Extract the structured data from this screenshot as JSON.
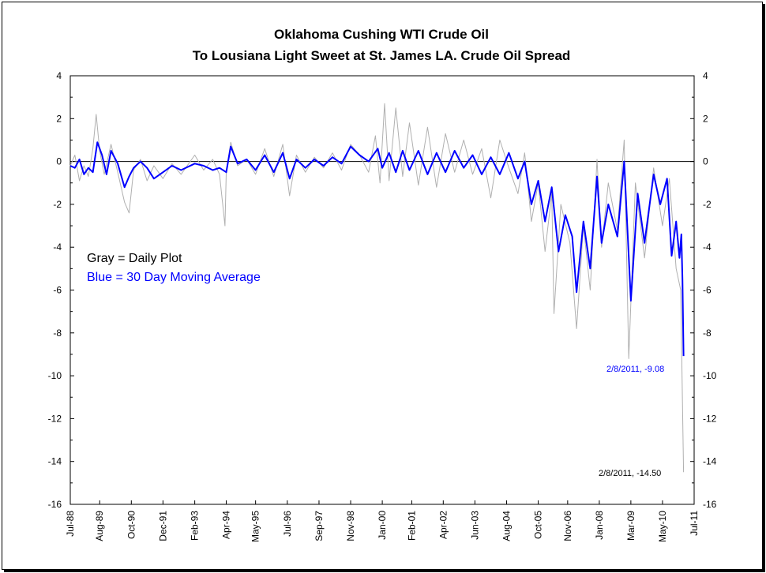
{
  "chart_data": {
    "type": "line",
    "title": "Oklahoma Cushing WTI Crude Oil",
    "subtitle": "To Lousiana Light Sweet at St. James LA. Crude Oil Spread",
    "ylim": [
      -16,
      4
    ],
    "xlim": [
      "1988-07-01",
      "2011-07-01"
    ],
    "y_ticks": [
      4,
      2,
      0,
      -2,
      -4,
      -6,
      -8,
      -10,
      -12,
      -14,
      -16
    ],
    "y_tick_labels": [
      "4",
      "2",
      "0",
      "-2",
      "-4",
      "-6",
      "-8",
      "-10",
      "-12",
      "-14",
      "-16"
    ],
    "x_tick_labels": [
      "Jul-88",
      "Aug-89",
      "Oct-90",
      "Dec-91",
      "Feb-93",
      "Apr-94",
      "May-95",
      "Jul-96",
      "Sep-97",
      "Nov-98",
      "Jan-00",
      "Feb-01",
      "Apr-02",
      "Jun-03",
      "Aug-04",
      "Oct-05",
      "Nov-06",
      "Jan-08",
      "Mar-09",
      "May-10",
      "Jul-11"
    ],
    "x_tick_dates": [
      "1988-07-01",
      "1989-08-01",
      "1990-10-01",
      "1991-12-01",
      "1993-02-01",
      "1994-04-01",
      "1995-05-01",
      "1996-07-01",
      "1997-09-01",
      "1998-11-01",
      "2000-01-01",
      "2001-02-01",
      "2002-04-01",
      "2003-06-01",
      "2004-08-01",
      "2005-10-01",
      "2006-11-01",
      "2008-01-01",
      "2009-03-01",
      "2010-05-01",
      "2011-07-01"
    ],
    "legend": [
      {
        "text": "Gray = Daily Plot",
        "color": "#000000"
      },
      {
        "text": "Blue = 30 Day Moving Average",
        "color": "#0000ff"
      }
    ],
    "legend_position": "left",
    "grid": false,
    "reference_line": 0,
    "annotations": [
      {
        "text": "2/8/2011, -9.08",
        "color": "#0000ff"
      },
      {
        "text": "2/8/2011, -14.50",
        "color": "#000000"
      }
    ],
    "series": [
      {
        "name": "Gray = Daily Plot",
        "color": "#b0b0b0",
        "points": [
          [
            "1988-07-01",
            -0.2
          ],
          [
            "1988-09-01",
            0.3
          ],
          [
            "1988-11-01",
            -0.9
          ],
          [
            "1989-01-01",
            -0.2
          ],
          [
            "1989-03-01",
            -0.7
          ],
          [
            "1989-05-01",
            0.6
          ],
          [
            "1989-06-15",
            2.2
          ],
          [
            "1989-08-01",
            0.5
          ],
          [
            "1989-10-01",
            -0.6
          ],
          [
            "1990-01-01",
            0.8
          ],
          [
            "1990-04-01",
            -0.5
          ],
          [
            "1990-07-01",
            -1.9
          ],
          [
            "1990-09-01",
            -2.4
          ],
          [
            "1990-11-01",
            -0.4
          ],
          [
            "1991-02-01",
            0.1
          ],
          [
            "1991-05-01",
            -0.9
          ],
          [
            "1991-08-01",
            -0.2
          ],
          [
            "1991-12-01",
            -0.8
          ],
          [
            "1992-04-01",
            -0.1
          ],
          [
            "1992-08-01",
            -0.6
          ],
          [
            "1993-02-01",
            0.3
          ],
          [
            "1993-06-01",
            -0.4
          ],
          [
            "1993-10-01",
            0.1
          ],
          [
            "1994-01-01",
            -0.6
          ],
          [
            "1994-03-15",
            -3.0
          ],
          [
            "1994-04-01",
            -0.5
          ],
          [
            "1994-06-01",
            0.9
          ],
          [
            "1994-09-01",
            -0.2
          ],
          [
            "1995-01-01",
            0.1
          ],
          [
            "1995-05-01",
            -0.6
          ],
          [
            "1995-09-01",
            0.6
          ],
          [
            "1996-01-01",
            -0.7
          ],
          [
            "1996-05-01",
            0.8
          ],
          [
            "1996-08-01",
            -1.6
          ],
          [
            "1996-11-01",
            0.3
          ],
          [
            "1997-03-01",
            -0.5
          ],
          [
            "1997-07-01",
            0.2
          ],
          [
            "1997-11-01",
            -0.3
          ],
          [
            "1998-03-01",
            0.4
          ],
          [
            "1998-07-01",
            -0.4
          ],
          [
            "1998-11-01",
            0.8
          ],
          [
            "1999-03-01",
            0.3
          ],
          [
            "1999-07-01",
            -0.5
          ],
          [
            "1999-10-01",
            1.2
          ],
          [
            "1999-12-01",
            -1.0
          ],
          [
            "2000-02-01",
            2.7
          ],
          [
            "2000-04-01",
            -0.9
          ],
          [
            "2000-07-01",
            2.5
          ],
          [
            "2000-10-01",
            -0.7
          ],
          [
            "2001-01-01",
            1.8
          ],
          [
            "2001-05-01",
            -1.1
          ],
          [
            "2001-09-01",
            1.6
          ],
          [
            "2002-01-01",
            -1.2
          ],
          [
            "2002-05-01",
            1.3
          ],
          [
            "2002-09-01",
            -0.5
          ],
          [
            "2003-01-01",
            1.0
          ],
          [
            "2003-05-01",
            -0.6
          ],
          [
            "2003-09-01",
            0.6
          ],
          [
            "2004-01-01",
            -1.7
          ],
          [
            "2004-05-01",
            1.0
          ],
          [
            "2004-09-01",
            -0.3
          ],
          [
            "2005-01-01",
            -1.5
          ],
          [
            "2005-04-01",
            0.4
          ],
          [
            "2005-07-01",
            -2.8
          ],
          [
            "2005-10-01",
            -1.0
          ],
          [
            "2006-01-01",
            -4.2
          ],
          [
            "2006-04-01",
            -1.5
          ],
          [
            "2006-05-01",
            -7.1
          ],
          [
            "2006-08-01",
            -2.0
          ],
          [
            "2006-12-01",
            -3.8
          ],
          [
            "2007-03-01",
            -7.8
          ],
          [
            "2007-06-01",
            -3.0
          ],
          [
            "2007-09-01",
            -6.0
          ],
          [
            "2007-12-01",
            0.1
          ],
          [
            "2008-02-01",
            -4.0
          ],
          [
            "2008-05-01",
            -1.0
          ],
          [
            "2008-09-01",
            -3.2
          ],
          [
            "2008-12-01",
            1.0
          ],
          [
            "2009-02-01",
            -9.2
          ],
          [
            "2009-05-01",
            -1.0
          ],
          [
            "2009-09-01",
            -4.5
          ],
          [
            "2010-01-01",
            -0.3
          ],
          [
            "2010-05-01",
            -3.0
          ],
          [
            "2010-08-01",
            -0.8
          ],
          [
            "2010-11-01",
            -5.0
          ],
          [
            "2011-01-01",
            -6.0
          ],
          [
            "2011-02-08",
            -14.5
          ]
        ]
      },
      {
        "name": "Blue = 30 Day Moving Average",
        "color": "#0000ff",
        "points": [
          [
            "1988-07-01",
            -0.2
          ],
          [
            "1988-09-01",
            -0.3
          ],
          [
            "1988-11-01",
            0.1
          ],
          [
            "1989-01-01",
            -0.6
          ],
          [
            "1989-03-01",
            -0.3
          ],
          [
            "1989-05-01",
            -0.5
          ],
          [
            "1989-07-01",
            0.9
          ],
          [
            "1989-09-01",
            0.3
          ],
          [
            "1989-11-01",
            -0.6
          ],
          [
            "1990-01-01",
            0.5
          ],
          [
            "1990-04-01",
            -0.1
          ],
          [
            "1990-07-01",
            -1.2
          ],
          [
            "1990-09-01",
            -0.7
          ],
          [
            "1990-11-01",
            -0.3
          ],
          [
            "1991-02-01",
            0.0
          ],
          [
            "1991-05-01",
            -0.3
          ],
          [
            "1991-08-01",
            -0.8
          ],
          [
            "1991-12-01",
            -0.5
          ],
          [
            "1992-04-01",
            -0.2
          ],
          [
            "1992-08-01",
            -0.4
          ],
          [
            "1993-02-01",
            -0.1
          ],
          [
            "1993-06-01",
            -0.2
          ],
          [
            "1993-10-01",
            -0.4
          ],
          [
            "1994-01-01",
            -0.3
          ],
          [
            "1994-04-01",
            -0.5
          ],
          [
            "1994-06-01",
            0.7
          ],
          [
            "1994-09-01",
            -0.1
          ],
          [
            "1995-01-01",
            0.1
          ],
          [
            "1995-05-01",
            -0.4
          ],
          [
            "1995-09-01",
            0.3
          ],
          [
            "1996-01-01",
            -0.5
          ],
          [
            "1996-05-01",
            0.4
          ],
          [
            "1996-08-01",
            -0.8
          ],
          [
            "1996-11-01",
            0.1
          ],
          [
            "1997-03-01",
            -0.3
          ],
          [
            "1997-07-01",
            0.1
          ],
          [
            "1997-11-01",
            -0.2
          ],
          [
            "1998-03-01",
            0.2
          ],
          [
            "1998-07-01",
            -0.1
          ],
          [
            "1998-11-01",
            0.7
          ],
          [
            "1999-03-01",
            0.3
          ],
          [
            "1999-07-01",
            0.0
          ],
          [
            "1999-11-01",
            0.6
          ],
          [
            "2000-01-01",
            -0.3
          ],
          [
            "2000-04-01",
            0.4
          ],
          [
            "2000-07-01",
            -0.5
          ],
          [
            "2000-10-01",
            0.5
          ],
          [
            "2001-01-01",
            -0.4
          ],
          [
            "2001-05-01",
            0.5
          ],
          [
            "2001-09-01",
            -0.6
          ],
          [
            "2002-01-01",
            0.4
          ],
          [
            "2002-05-01",
            -0.5
          ],
          [
            "2002-09-01",
            0.5
          ],
          [
            "2003-01-01",
            -0.3
          ],
          [
            "2003-05-01",
            0.3
          ],
          [
            "2003-09-01",
            -0.6
          ],
          [
            "2004-01-01",
            0.2
          ],
          [
            "2004-05-01",
            -0.6
          ],
          [
            "2004-09-01",
            0.4
          ],
          [
            "2005-01-01",
            -0.8
          ],
          [
            "2005-04-01",
            0.0
          ],
          [
            "2005-07-01",
            -2.0
          ],
          [
            "2005-10-01",
            -0.9
          ],
          [
            "2006-01-01",
            -2.8
          ],
          [
            "2006-04-01",
            -1.2
          ],
          [
            "2006-07-01",
            -4.2
          ],
          [
            "2006-10-01",
            -2.5
          ],
          [
            "2007-01-01",
            -3.5
          ],
          [
            "2007-03-01",
            -6.1
          ],
          [
            "2007-06-01",
            -2.8
          ],
          [
            "2007-09-01",
            -5.0
          ],
          [
            "2007-12-01",
            -0.7
          ],
          [
            "2008-02-01",
            -3.8
          ],
          [
            "2008-05-01",
            -2.0
          ],
          [
            "2008-09-01",
            -3.5
          ],
          [
            "2008-12-01",
            0.0
          ],
          [
            "2009-03-01",
            -6.5
          ],
          [
            "2009-06-01",
            -1.5
          ],
          [
            "2009-09-01",
            -3.8
          ],
          [
            "2010-01-01",
            -0.6
          ],
          [
            "2010-04-01",
            -2.0
          ],
          [
            "2010-07-01",
            -0.8
          ],
          [
            "2010-09-01",
            -4.4
          ],
          [
            "2010-11-01",
            -2.8
          ],
          [
            "2010-12-15",
            -4.5
          ],
          [
            "2011-01-10",
            -3.4
          ],
          [
            "2011-01-25",
            -5.5
          ],
          [
            "2011-02-08",
            -9.08
          ]
        ]
      }
    ]
  }
}
